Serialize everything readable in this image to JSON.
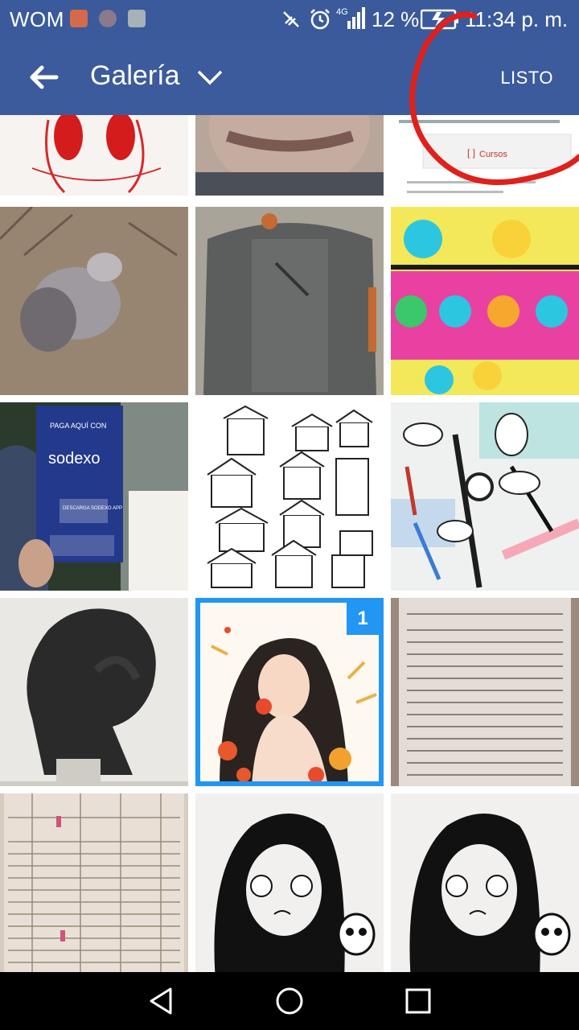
{
  "status_bar": {
    "carrier": "WOM",
    "network": "4G",
    "battery_percent": "12 %",
    "time": "11:34 p. m."
  },
  "app_bar": {
    "back_icon": "arrow-left-icon",
    "title": "Galería",
    "title_dropdown_icon": "chevron-down-icon",
    "done_label": "LISTO"
  },
  "gallery": {
    "thumbnails": [
      {
        "subject": "red drawing sketch"
      },
      {
        "subject": "close-up of lips"
      },
      {
        "subject": "email screenshot",
        "button_text": "Cursos"
      },
      {
        "subject": "dog on dirt"
      },
      {
        "subject": "grey backpack"
      },
      {
        "subject": "comic illustration"
      },
      {
        "subject": "sodexo flyer",
        "heading": "PAGA AQUÍ CON",
        "brand": "sodexo",
        "subheading": "DESCARGA SODEXO APP"
      },
      {
        "subject": "house drawings"
      },
      {
        "subject": "watch and pens on desk"
      },
      {
        "subject": "thinker silhouette"
      },
      {
        "subject": "girl with flowers illustration",
        "selected": true,
        "selection_number": "1"
      },
      {
        "subject": "receipt"
      },
      {
        "subject": "spreadsheet printout"
      },
      {
        "subject": "girl with skull drawing"
      },
      {
        "subject": "girl with skull drawing"
      }
    ]
  },
  "nav_bar": {
    "back_icon": "triangle-back-icon",
    "home_icon": "circle-home-icon",
    "recents_icon": "square-recents-icon"
  },
  "colors": {
    "app_bar": "#3b5b9d",
    "selection": "#2196f3",
    "annotation": "#e0201a"
  }
}
